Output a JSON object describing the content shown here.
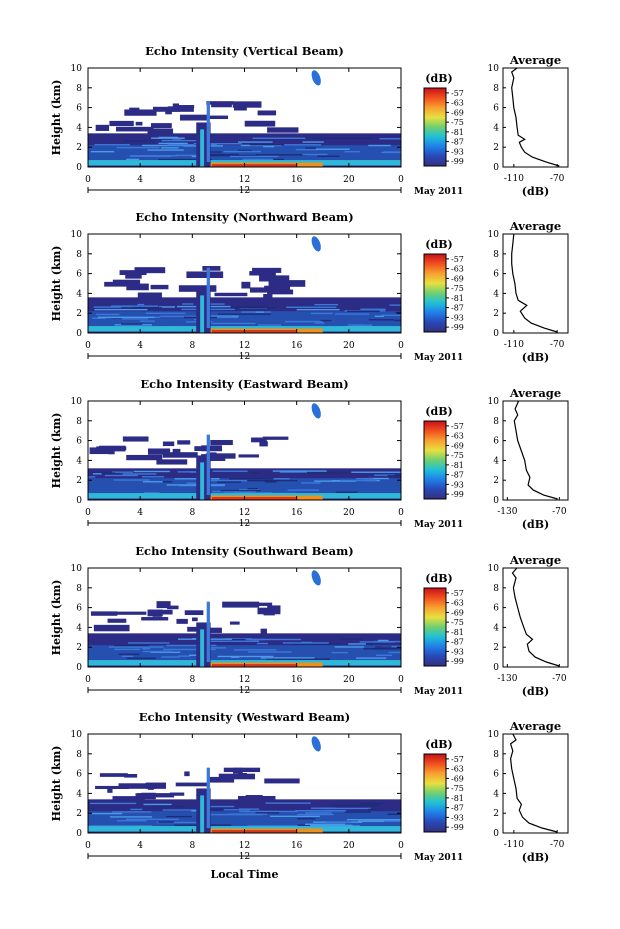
{
  "figure": {
    "x_axis_label": "Local Time",
    "date_label": "May 2011"
  },
  "chart_data": [
    {
      "type": "heatmap",
      "title": "Echo Intensity (Vertical Beam)",
      "ylabel": "Height (km)",
      "xlabel": "Local Time",
      "xticks": [
        "0",
        "4",
        "8",
        "12",
        "16",
        "20",
        "0"
      ],
      "xlim": [
        0,
        24
      ],
      "yticks": [
        "0",
        "2",
        "4",
        "6",
        "8",
        "10"
      ],
      "ylim": [
        0,
        10
      ],
      "marker_label": "12",
      "colorbar": {
        "label": "(dB)",
        "ticks": [
          "-57",
          "-63",
          "-69",
          "-75",
          "-81",
          "-87",
          "-93",
          "-99"
        ]
      },
      "profile": {
        "title": "Average",
        "xlabel": "(dB)",
        "xlim": [
          -120,
          -60
        ],
        "xticks": [
          -110,
          -70
        ],
        "xticklabels": [
          "-110",
          "-70"
        ],
        "yticks": [
          "0",
          "2",
          "4",
          "6",
          "8",
          "10"
        ],
        "points": [
          [
            -68,
            0.1
          ],
          [
            -80,
            0.5
          ],
          [
            -93,
            1.0
          ],
          [
            -100,
            1.5
          ],
          [
            -103,
            2.0
          ],
          [
            -105,
            2.5
          ],
          [
            -100,
            2.8
          ],
          [
            -106,
            3.2
          ],
          [
            -107,
            4.0
          ],
          [
            -108,
            5.0
          ],
          [
            -110,
            6.0
          ],
          [
            -111,
            7.0
          ],
          [
            -112,
            8.0
          ],
          [
            -110,
            9.0
          ],
          [
            -112,
            9.6
          ],
          [
            -107,
            10.0
          ]
        ]
      }
    },
    {
      "type": "heatmap",
      "title": "Echo Intensity (Northward Beam)",
      "ylabel": "Height (km)",
      "xlabel": "Local Time",
      "xticks": [
        "0",
        "4",
        "8",
        "12",
        "16",
        "20",
        "0"
      ],
      "xlim": [
        0,
        24
      ],
      "yticks": [
        "0",
        "2",
        "4",
        "6",
        "8",
        "10"
      ],
      "ylim": [
        0,
        10
      ],
      "marker_label": "12",
      "colorbar": {
        "label": "(dB)",
        "ticks": [
          "-57",
          "-63",
          "-69",
          "-75",
          "-81",
          "-87",
          "-93",
          "-99"
        ]
      },
      "profile": {
        "title": "Average",
        "xlabel": "(dB)",
        "xlim": [
          -120,
          -60
        ],
        "xticks": [
          -110,
          -70
        ],
        "xticklabels": [
          "-110",
          "-70"
        ],
        "yticks": [
          "0",
          "2",
          "4",
          "6",
          "8",
          "10"
        ],
        "points": [
          [
            -70,
            0.1
          ],
          [
            -82,
            0.5
          ],
          [
            -94,
            1.0
          ],
          [
            -100,
            1.5
          ],
          [
            -104,
            2.2
          ],
          [
            -98,
            2.8
          ],
          [
            -106,
            3.3
          ],
          [
            -108,
            4.0
          ],
          [
            -109,
            5.0
          ],
          [
            -111,
            6.0
          ],
          [
            -112,
            7.0
          ],
          [
            -112,
            8.0
          ],
          [
            -111,
            9.0
          ],
          [
            -110,
            10.0
          ]
        ]
      }
    },
    {
      "type": "heatmap",
      "title": "Echo Intensity (Eastward Beam)",
      "ylabel": "Height (km)",
      "xlabel": "Local Time",
      "xticks": [
        "0",
        "4",
        "8",
        "12",
        "16",
        "20",
        "0"
      ],
      "xlim": [
        0,
        24
      ],
      "yticks": [
        "0",
        "2",
        "4",
        "6",
        "8",
        "10"
      ],
      "ylim": [
        0,
        10
      ],
      "marker_label": "12",
      "colorbar": {
        "label": "(dB)",
        "ticks": [
          "-57",
          "-63",
          "-69",
          "-75",
          "-81",
          "-87",
          "-93",
          "-99"
        ]
      },
      "profile": {
        "title": "Average",
        "xlabel": "(dB)",
        "xlim": [
          -135,
          -60
        ],
        "xticks": [
          -130,
          -70
        ],
        "xticklabels": [
          "-130",
          "-70"
        ],
        "yticks": [
          "0",
          "2",
          "4",
          "6",
          "8",
          "10"
        ],
        "points": [
          [
            -72,
            0.1
          ],
          [
            -88,
            0.5
          ],
          [
            -100,
            1.0
          ],
          [
            -106,
            1.5
          ],
          [
            -104,
            2.3
          ],
          [
            -108,
            3.0
          ],
          [
            -110,
            4.0
          ],
          [
            -114,
            5.0
          ],
          [
            -118,
            6.0
          ],
          [
            -120,
            7.0
          ],
          [
            -122,
            8.0
          ],
          [
            -118,
            8.6
          ],
          [
            -121,
            9.2
          ],
          [
            -117,
            10.0
          ]
        ]
      }
    },
    {
      "type": "heatmap",
      "title": "Echo Intensity (Southward Beam)",
      "ylabel": "Height (km)",
      "xlabel": "Local Time",
      "xticks": [
        "0",
        "4",
        "8",
        "12",
        "16",
        "20",
        "0"
      ],
      "xlim": [
        0,
        24
      ],
      "yticks": [
        "0",
        "2",
        "4",
        "6",
        "8",
        "10"
      ],
      "ylim": [
        0,
        10
      ],
      "marker_label": "12",
      "colorbar": {
        "label": "(dB)",
        "ticks": [
          "-57",
          "-63",
          "-69",
          "-75",
          "-81",
          "-87",
          "-93",
          "-99"
        ]
      },
      "profile": {
        "title": "Average",
        "xlabel": "(dB)",
        "xlim": [
          -135,
          -60
        ],
        "xticks": [
          -130,
          -70
        ],
        "xticklabels": [
          "-130",
          "-70"
        ],
        "yticks": [
          "0",
          "2",
          "4",
          "6",
          "8",
          "10"
        ],
        "points": [
          [
            -70,
            0.1
          ],
          [
            -85,
            0.5
          ],
          [
            -98,
            1.0
          ],
          [
            -105,
            1.6
          ],
          [
            -107,
            2.3
          ],
          [
            -101,
            2.8
          ],
          [
            -108,
            3.3
          ],
          [
            -111,
            4.0
          ],
          [
            -115,
            5.0
          ],
          [
            -118,
            6.0
          ],
          [
            -121,
            7.0
          ],
          [
            -123,
            8.0
          ],
          [
            -120,
            9.0
          ],
          [
            -124,
            9.5
          ],
          [
            -119,
            10.0
          ]
        ]
      }
    },
    {
      "type": "heatmap",
      "title": "Echo Intensity (Westward Beam)",
      "ylabel": "Height (km)",
      "xlabel": "Local Time",
      "xticks": [
        "0",
        "4",
        "8",
        "12",
        "16",
        "20",
        "0"
      ],
      "xlim": [
        0,
        24
      ],
      "yticks": [
        "0",
        "2",
        "4",
        "6",
        "8",
        "10"
      ],
      "ylim": [
        0,
        10
      ],
      "marker_label": "12",
      "colorbar": {
        "label": "(dB)",
        "ticks": [
          "-57",
          "-63",
          "-69",
          "-75",
          "-81",
          "-87",
          "-93",
          "-99"
        ]
      },
      "profile": {
        "title": "Average",
        "xlabel": "(dB)",
        "xlim": [
          -120,
          -60
        ],
        "xticks": [
          -110,
          -70
        ],
        "xticklabels": [
          "-110",
          "-70"
        ],
        "yticks": [
          "0",
          "2",
          "4",
          "6",
          "8",
          "10"
        ],
        "points": [
          [
            -70,
            0.1
          ],
          [
            -84,
            0.5
          ],
          [
            -96,
            1.0
          ],
          [
            -102,
            1.6
          ],
          [
            -105,
            2.3
          ],
          [
            -103,
            2.9
          ],
          [
            -107,
            3.5
          ],
          [
            -108,
            4.5
          ],
          [
            -110,
            5.5
          ],
          [
            -112,
            6.5
          ],
          [
            -113,
            7.5
          ],
          [
            -111,
            8.3
          ],
          [
            -113,
            9.0
          ],
          [
            -108,
            9.4
          ],
          [
            -111,
            10.0
          ]
        ]
      }
    }
  ]
}
